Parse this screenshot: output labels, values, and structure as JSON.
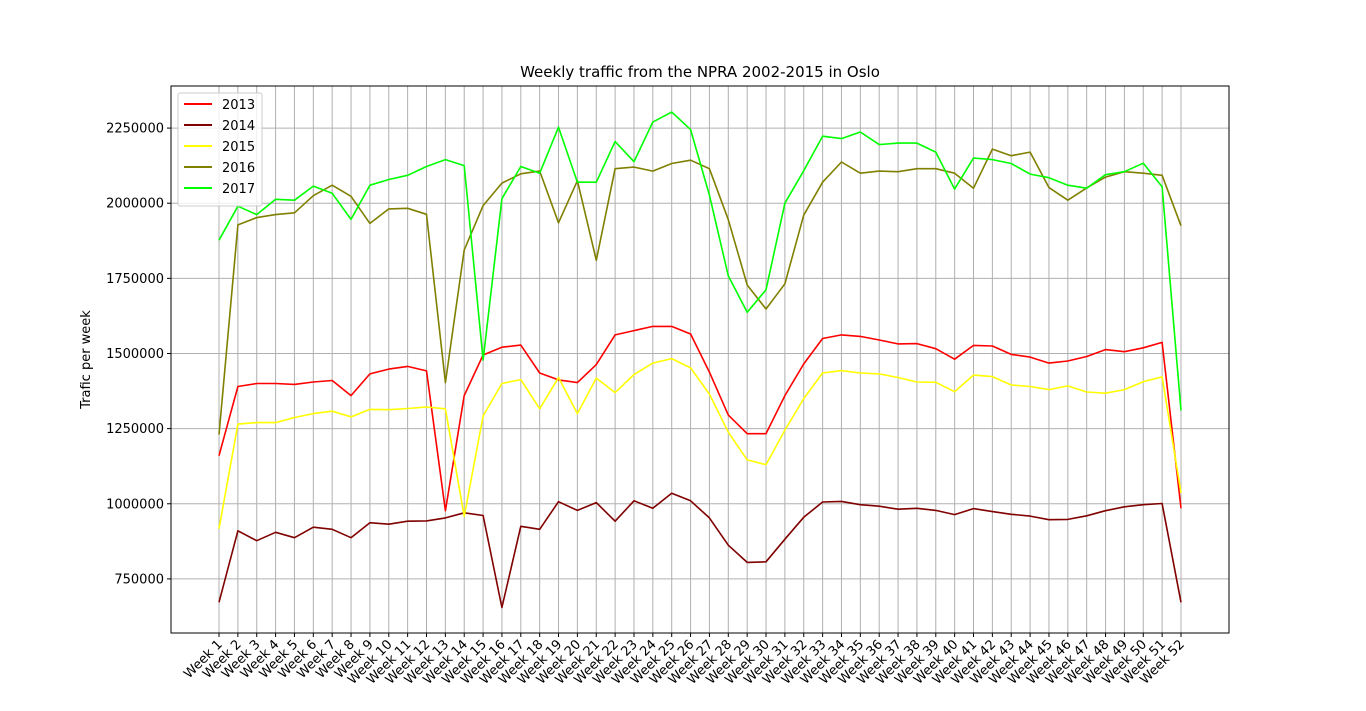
{
  "chart_data": {
    "type": "line",
    "title": "Weekly traffic from the NPRA 2002-2015 in Oslo",
    "xlabel": "",
    "ylabel": "Trafic per week",
    "ylim": [
      570000,
      2390000
    ],
    "yticks": [
      750000,
      1000000,
      1250000,
      1500000,
      1750000,
      2000000,
      2250000
    ],
    "ytick_labels": [
      "750000",
      "1000000",
      "1250000",
      "1500000",
      "1750000",
      "2000000",
      "2250000"
    ],
    "grid": true,
    "legend_position": "top-left",
    "categories": [
      "Week 1",
      "Week 2",
      "Week 3",
      "Week 4",
      "Week 5",
      "Week 6",
      "Week 7",
      "Week 8",
      "Week 9",
      "Week 10",
      "Week 11",
      "Week 12",
      "Week 13",
      "Week 14",
      "Week 15",
      "Week 16",
      "Week 17",
      "Week 18",
      "Week 19",
      "Week 20",
      "Week 21",
      "Week 22",
      "Week 23",
      "Week 24",
      "Week 25",
      "Week 26",
      "Week 27",
      "Week 28",
      "Week 29",
      "Week 30",
      "Week 31",
      "Week 32",
      "Week 33",
      "Week 34",
      "Week 35",
      "Week 36",
      "Week 37",
      "Week 38",
      "Week 39",
      "Week 40",
      "Week 41",
      "Week 42",
      "Week 43",
      "Week 44",
      "Week 45",
      "Week 46",
      "Week 47",
      "Week 48",
      "Week 49",
      "Week 50",
      "Week 51",
      "Week 52"
    ],
    "series": [
      {
        "name": "2013",
        "color": "#ff0000",
        "values": [
          1160000,
          1390000,
          1400000,
          1400000,
          1397000,
          1405000,
          1410000,
          1360000,
          1432000,
          1448000,
          1457000,
          1442000,
          977000,
          1360000,
          1495000,
          1521000,
          1528000,
          1435000,
          1412000,
          1403000,
          1463000,
          1562000,
          1576000,
          1590000,
          1590000,
          1565000,
          1438000,
          1295000,
          1233000,
          1233000,
          1360000,
          1465000,
          1550000,
          1562000,
          1557000,
          1545000,
          1532000,
          1533000,
          1516000,
          1481000,
          1527000,
          1525000,
          1497000,
          1488000,
          1468000,
          1475000,
          1490000,
          1513000,
          1506000,
          1519000,
          1537000,
          985000
        ]
      },
      {
        "name": "2014",
        "color": "#800000",
        "values": [
          672000,
          910000,
          877000,
          905000,
          887000,
          922000,
          915000,
          887000,
          937000,
          932000,
          942000,
          943000,
          953000,
          970000,
          961000,
          655000,
          925000,
          915000,
          1007000,
          978000,
          1004000,
          942000,
          1010000,
          985000,
          1035000,
          1010000,
          953000,
          862000,
          805000,
          807000,
          882000,
          955000,
          1006000,
          1008000,
          997000,
          992000,
          982000,
          985000,
          978000,
          964000,
          984000,
          974000,
          965000,
          959000,
          947000,
          948000,
          960000,
          977000,
          990000,
          997000,
          1001000,
          672000
        ]
      },
      {
        "name": "2015",
        "color": "#ffff00",
        "values": [
          917000,
          1265000,
          1270000,
          1270000,
          1287000,
          1300000,
          1308000,
          1289000,
          1314000,
          1313000,
          1317000,
          1322000,
          1316000,
          958000,
          1292000,
          1400000,
          1413000,
          1316000,
          1420000,
          1300000,
          1418000,
          1370000,
          1430000,
          1468000,
          1483000,
          1452000,
          1365000,
          1238000,
          1146000,
          1130000,
          1245000,
          1350000,
          1435000,
          1443000,
          1435000,
          1432000,
          1420000,
          1405000,
          1404000,
          1373000,
          1428000,
          1423000,
          1395000,
          1390000,
          1380000,
          1392000,
          1372000,
          1368000,
          1380000,
          1406000,
          1422000,
          1036000
        ]
      },
      {
        "name": "2016",
        "color": "#808000",
        "values": [
          1230000,
          1928000,
          1952000,
          1962000,
          1968000,
          2025000,
          2060000,
          2023000,
          1933000,
          1981000,
          1983000,
          1963000,
          1403000,
          1844000,
          1992000,
          2067000,
          2098000,
          2107000,
          1935000,
          2075000,
          1810000,
          2115000,
          2120000,
          2107000,
          2132000,
          2143000,
          2115000,
          1945000,
          1728000,
          1648000,
          1732000,
          1960000,
          2070000,
          2137000,
          2100000,
          2107000,
          2105000,
          2115000,
          2115000,
          2100000,
          2050000,
          2180000,
          2158000,
          2170000,
          2052000,
          2010000,
          2051000,
          2087000,
          2105000,
          2100000,
          2093000,
          1925000
        ]
      },
      {
        "name": "2017",
        "color": "#00ff00",
        "values": [
          1877000,
          1990000,
          1962000,
          2013000,
          2010000,
          2057000,
          2033000,
          1946000,
          2060000,
          2079000,
          2093000,
          2122000,
          2145000,
          2125000,
          1478000,
          2015000,
          2122000,
          2100000,
          2253000,
          2070000,
          2070000,
          2205000,
          2138000,
          2270000,
          2303000,
          2245000,
          2027000,
          1758000,
          1637000,
          1712000,
          2000000,
          2108000,
          2223000,
          2215000,
          2237000,
          2195000,
          2200000,
          2200000,
          2170000,
          2047000,
          2150000,
          2145000,
          2132000,
          2097000,
          2085000,
          2060000,
          2050000,
          2095000,
          2105000,
          2133000,
          2055000,
          1310000
        ]
      }
    ]
  }
}
